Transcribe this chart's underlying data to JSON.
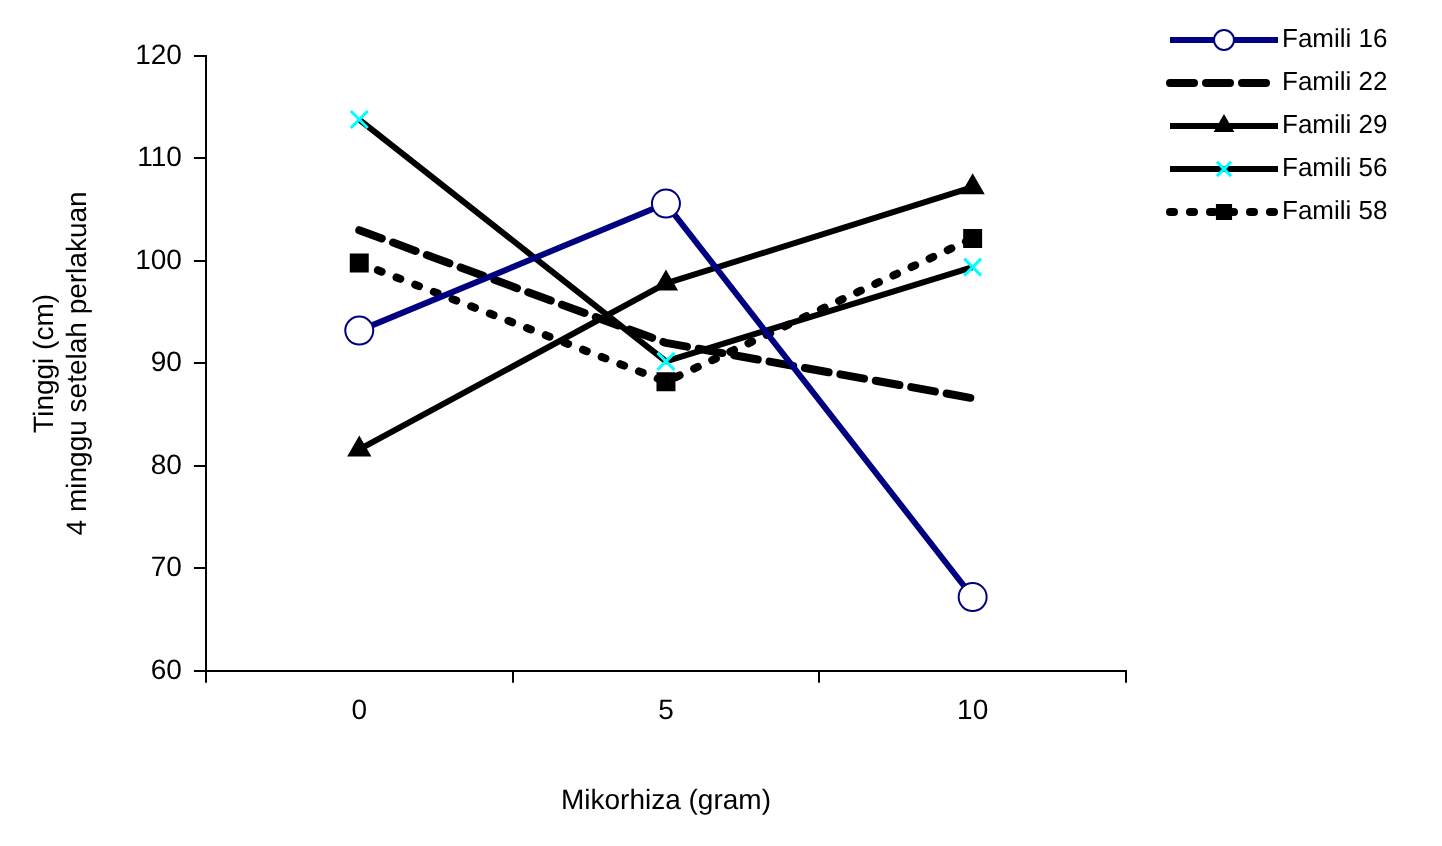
{
  "chart_data": {
    "type": "line",
    "xlabel": "Mikorhiza (gram)",
    "ylabel": "Tinggi (cm)\n4 minggu setelah perlakuan",
    "categories": [
      "0",
      "5",
      "10"
    ],
    "series": [
      {
        "name": "Famili 16",
        "color": "#000080",
        "values": [
          93.2,
          105.6,
          67.2
        ],
        "marker": "circle",
        "line_style": "solid"
      },
      {
        "name": "Famili 22",
        "color": "#000000",
        "values": [
          103,
          92,
          86.6
        ],
        "marker": "none",
        "line_style": "dashed"
      },
      {
        "name": "Famili 29",
        "color": "#000000",
        "values": [
          81.6,
          97.8,
          107.2
        ],
        "marker": "triangle",
        "line_style": "solid"
      },
      {
        "name": "Famili 56",
        "color": "#000000",
        "colors": [
          "#00ffff",
          "#00ffff",
          "#00ffff"
        ],
        "values": [
          113.8,
          90.2,
          99.4
        ],
        "marker": "cross",
        "line_style": "solid"
      },
      {
        "name": "Famili 58",
        "color": "#000000",
        "values": [
          99.8,
          88.2,
          102.2
        ],
        "marker": "square",
        "line_style": "dotted"
      }
    ],
    "ylim": [
      60,
      120
    ],
    "yticks": [
      60,
      70,
      80,
      90,
      100,
      110,
      120
    ],
    "grid": false,
    "legend": "top right"
  }
}
